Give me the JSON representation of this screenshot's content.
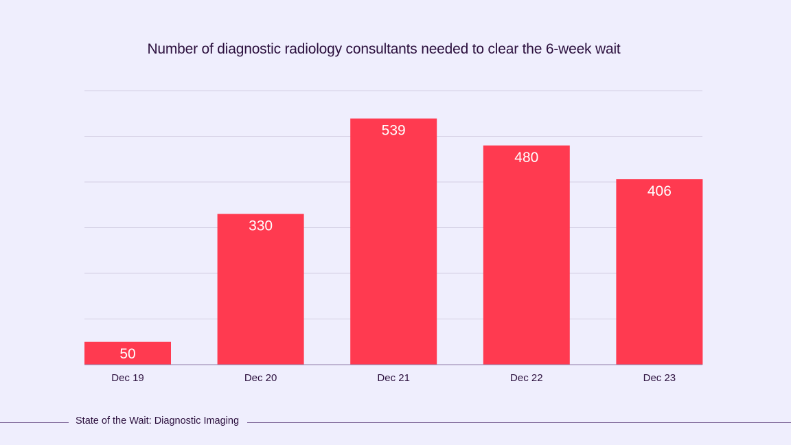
{
  "chart_data": {
    "type": "bar",
    "title": "Number of diagnostic radiology consultants needed to clear the 6-week wait",
    "categories": [
      "Dec 19",
      "Dec 20",
      "Dec 21",
      "Dec 22",
      "Dec 23"
    ],
    "values": [
      50,
      330,
      539,
      480,
      406
    ],
    "xlabel": "",
    "ylabel": "",
    "ylim": [
      0,
      600
    ],
    "grid": true,
    "y_tick_labels_shown": false,
    "data_labels": true,
    "colors": {
      "bar": "#ff3a50",
      "background": "#efeefd",
      "grid": "#d3cfe3",
      "text": "#2b0f3d",
      "label": "#ffffff"
    }
  },
  "footer": {
    "source": "State of the Wait: Diagnostic Imaging"
  }
}
